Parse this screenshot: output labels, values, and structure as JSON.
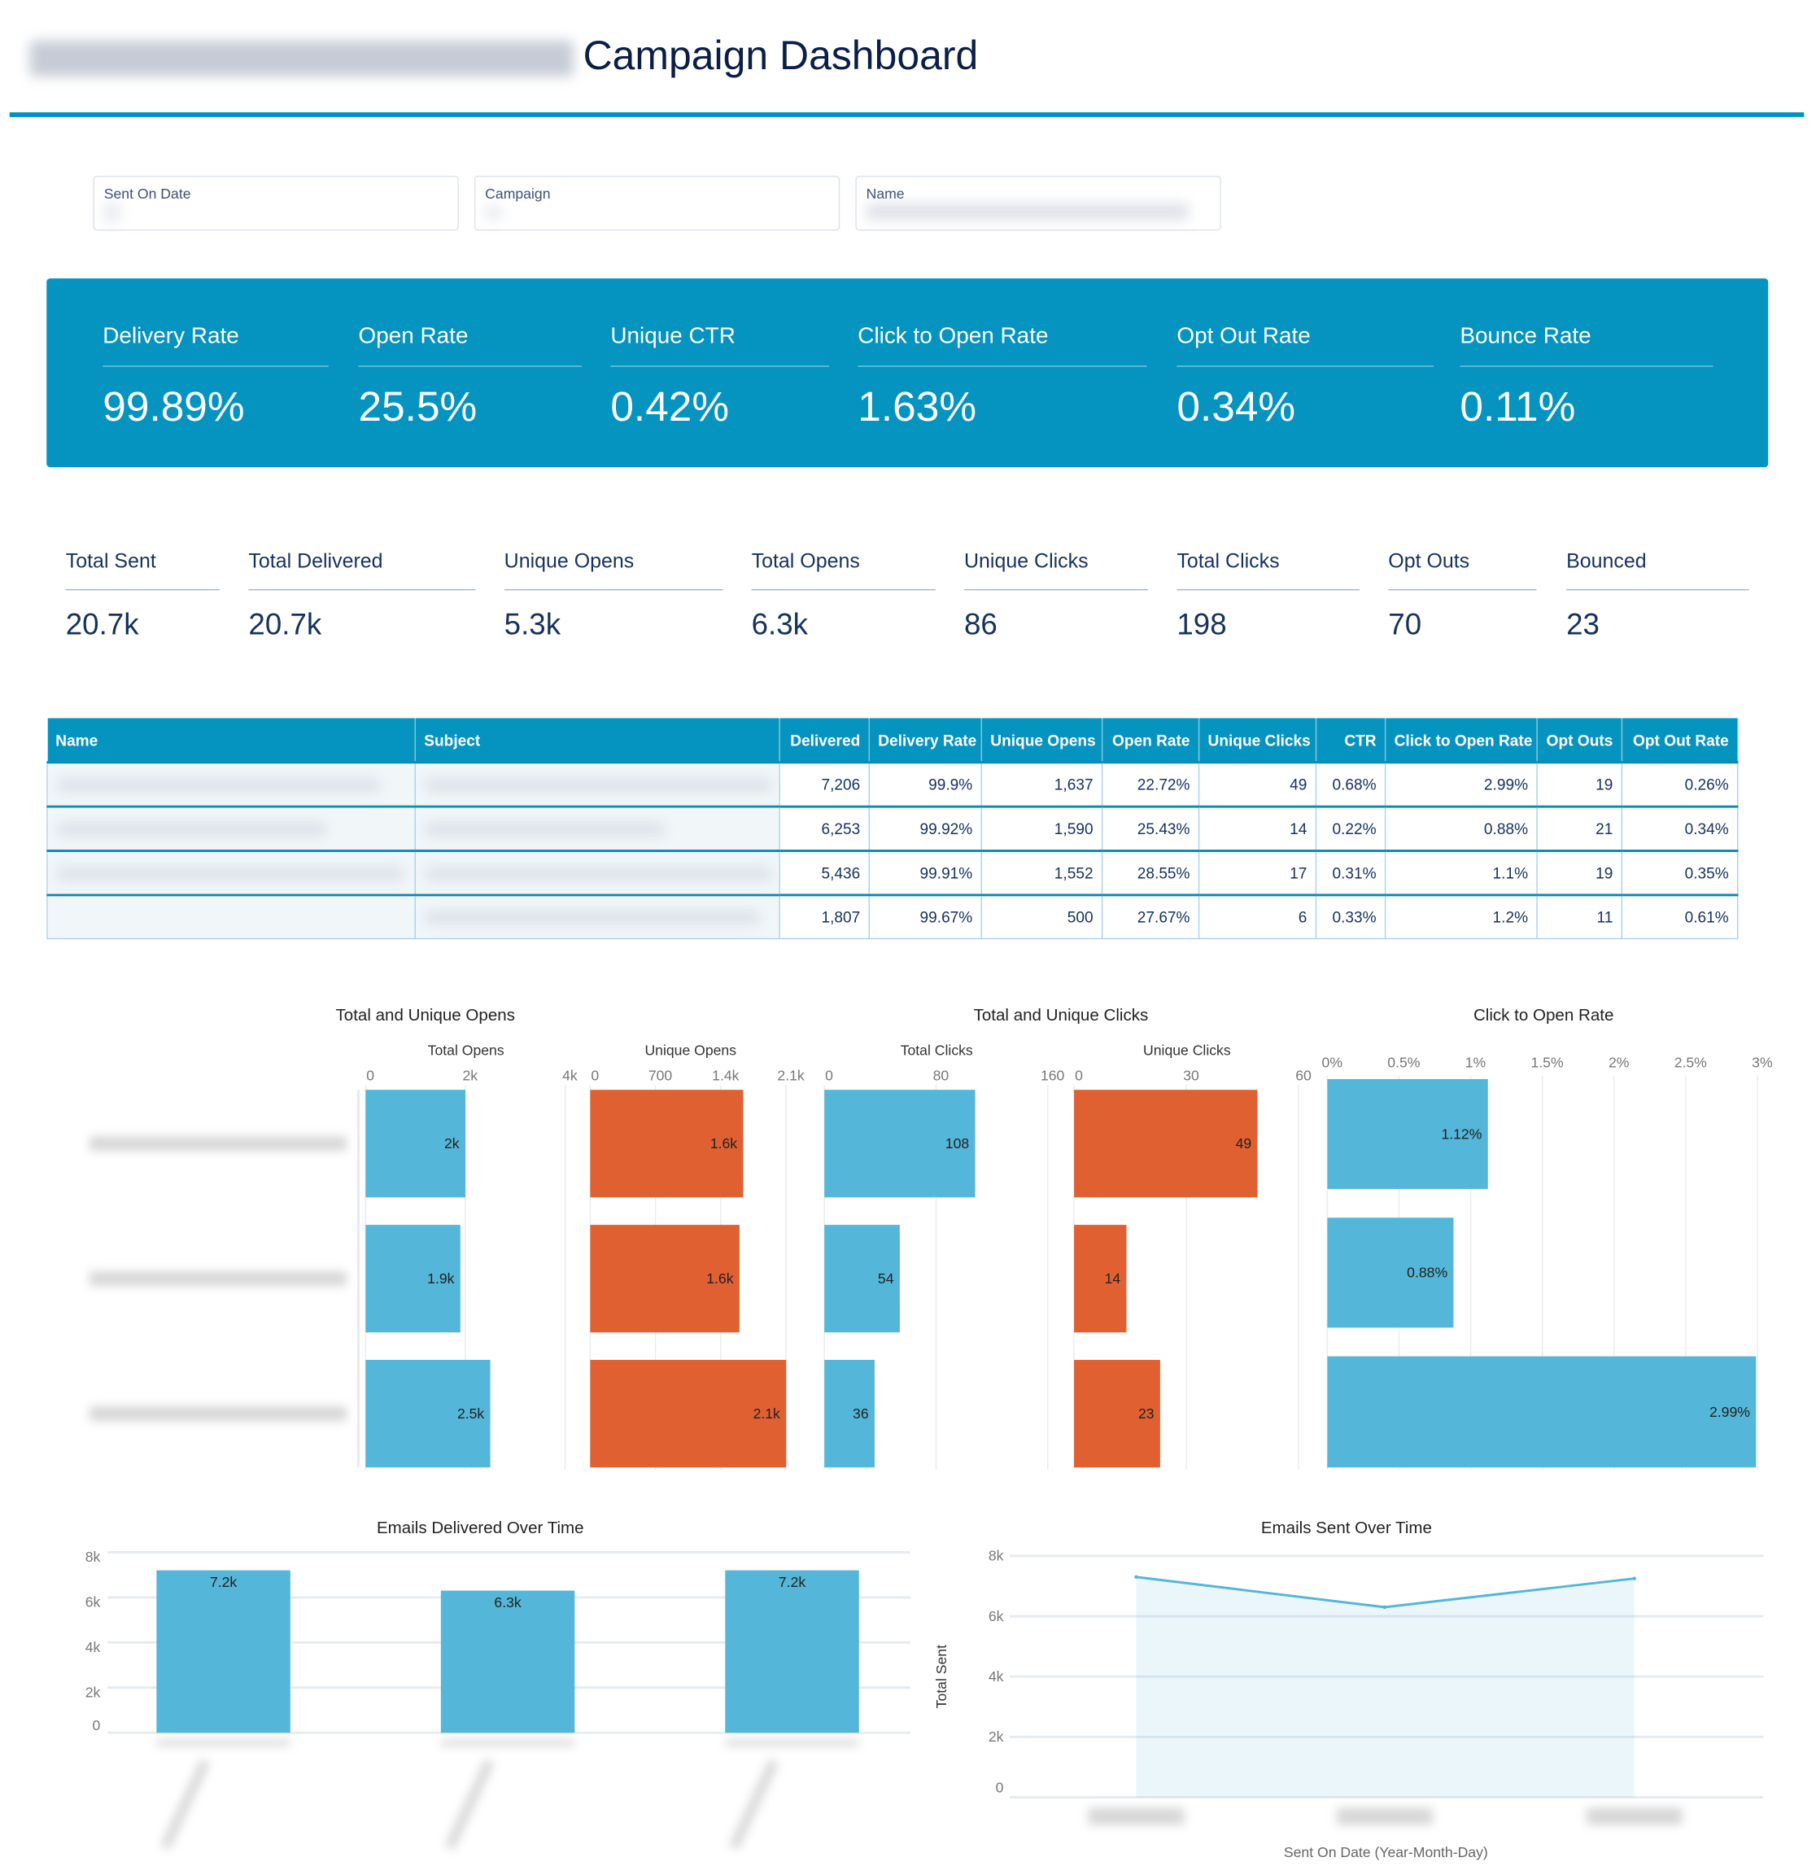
{
  "header": {
    "title": "Campaign Dashboard"
  },
  "filters": [
    {
      "label": "Sent On Date"
    },
    {
      "label": "Campaign"
    },
    {
      "label": "Name"
    }
  ],
  "kpis": [
    {
      "label": "Delivery Rate",
      "value": "99.89%"
    },
    {
      "label": "Open Rate",
      "value": "25.5%"
    },
    {
      "label": "Unique CTR",
      "value": "0.42%"
    },
    {
      "label": "Click to Open Rate",
      "value": "1.63%"
    },
    {
      "label": "Opt Out Rate",
      "value": "0.34%"
    },
    {
      "label": "Bounce Rate",
      "value": "0.11%"
    }
  ],
  "stats": [
    {
      "label": "Total Sent",
      "value": "20.7k"
    },
    {
      "label": "Total Delivered",
      "value": "20.7k"
    },
    {
      "label": "Unique Opens",
      "value": "5.3k"
    },
    {
      "label": "Total Opens",
      "value": "6.3k"
    },
    {
      "label": "Unique Clicks",
      "value": "86"
    },
    {
      "label": "Total Clicks",
      "value": "198"
    },
    {
      "label": "Opt Outs",
      "value": "70"
    },
    {
      "label": "Bounced",
      "value": "23"
    }
  ],
  "table": {
    "headers": [
      "Name",
      "Subject",
      "Delivered",
      "Delivery Rate",
      "Unique Opens",
      "Open Rate",
      "Unique Clicks",
      "CTR",
      "Click to Open Rate",
      "Opt Outs",
      "Opt Out Rate"
    ],
    "rows": [
      [
        "7,206",
        "99.9%",
        "1,637",
        "22.72%",
        "49",
        "0.68%",
        "2.99%",
        "19",
        "0.26%"
      ],
      [
        "6,253",
        "99.92%",
        "1,590",
        "25.43%",
        "14",
        "0.22%",
        "0.88%",
        "21",
        "0.34%"
      ],
      [
        "5,436",
        "99.91%",
        "1,552",
        "28.55%",
        "17",
        "0.31%",
        "1.1%",
        "19",
        "0.35%"
      ],
      [
        "1,807",
        "99.67%",
        "500",
        "27.67%",
        "6",
        "0.33%",
        "1.2%",
        "11",
        "0.61%"
      ]
    ]
  },
  "colors": {
    "accent": "#0494bf",
    "bar_blue": "#54b6d8",
    "bar_orange": "#e06032",
    "text": "#16325c"
  },
  "chart_data": [
    {
      "type": "bar",
      "title": "Total and Unique Opens",
      "orientation": "horizontal",
      "panels": [
        {
          "xlabel": "Total Opens",
          "ticks": [
            "0",
            "2k",
            "4k"
          ],
          "xlim": [
            0,
            4000
          ],
          "values": [
            2000,
            1900,
            2500
          ],
          "labels": [
            "2k",
            "1.9k",
            "2.5k"
          ],
          "color": "#54b6d8"
        },
        {
          "xlabel": "Unique Opens",
          "ticks": [
            "0",
            "700",
            "1.4k",
            "2.1k"
          ],
          "xlim": [
            0,
            2100
          ],
          "values": [
            1640,
            1600,
            2100
          ],
          "labels": [
            "1.6k",
            "1.6k",
            "2.1k"
          ],
          "color": "#e06032"
        }
      ]
    },
    {
      "type": "bar",
      "title": "Total and Unique Clicks",
      "orientation": "horizontal",
      "panels": [
        {
          "xlabel": "Total Clicks",
          "ticks": [
            "0",
            "80",
            "160"
          ],
          "xlim": [
            0,
            160
          ],
          "values": [
            108,
            54,
            36
          ],
          "labels": [
            "108",
            "54",
            "36"
          ],
          "color": "#54b6d8"
        },
        {
          "xlabel": "Unique Clicks",
          "ticks": [
            "0",
            "30",
            "60"
          ],
          "xlim": [
            0,
            60
          ],
          "values": [
            49,
            14,
            23
          ],
          "labels": [
            "49",
            "14",
            "23"
          ],
          "color": "#e06032"
        }
      ]
    },
    {
      "type": "bar",
      "title": "Click to Open Rate",
      "orientation": "horizontal",
      "panels": [
        {
          "xlabel": "",
          "ticks": [
            "0%",
            "0.5%",
            "1%",
            "1.5%",
            "2%",
            "2.5%",
            "3%"
          ],
          "xlim": [
            0,
            3
          ],
          "values": [
            1.12,
            0.88,
            2.99
          ],
          "labels": [
            "1.12%",
            "0.88%",
            "2.99%"
          ],
          "color": "#54b6d8"
        }
      ]
    },
    {
      "type": "bar",
      "title": "Emails Delivered Over Time",
      "yticks": [
        "0",
        "2k",
        "4k",
        "6k",
        "8k"
      ],
      "ylim": [
        0,
        8000
      ],
      "values": [
        7200,
        6300,
        7200
      ],
      "labels": [
        "7.2k",
        "6.3k",
        "7.2k"
      ],
      "color": "#54b6d8",
      "grid": true
    },
    {
      "type": "area",
      "title": "Emails Sent Over Time",
      "ylabel": "Total Sent",
      "xlabel": "Sent On Date (Year-Month-Day)",
      "yticks": [
        "0",
        "2k",
        "4k",
        "6k",
        "8k"
      ],
      "ylim": [
        0,
        8000
      ],
      "values": [
        7300,
        6300,
        7250
      ],
      "color": "#54b6d8",
      "grid": true
    }
  ]
}
